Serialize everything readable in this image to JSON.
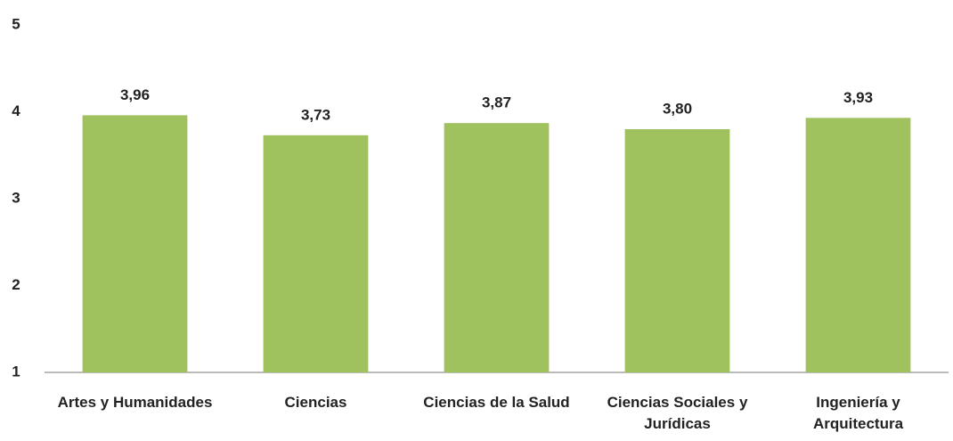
{
  "chart_data": {
    "type": "bar",
    "categories": [
      "Artes y Humanidades",
      "Ciencias",
      "Ciencias de la Salud",
      "Ciencias Sociales y Jurídicas",
      "Ingeniería y Arquitectura"
    ],
    "values": [
      3.96,
      3.73,
      3.87,
      3.8,
      3.93
    ],
    "value_labels": [
      "3,96",
      "3,73",
      "3,87",
      "3,80",
      "3,93"
    ],
    "color": "#9fc15e",
    "ylim": [
      1,
      5
    ],
    "yticks": [
      1,
      2,
      3,
      4,
      5
    ],
    "grid": false
  }
}
